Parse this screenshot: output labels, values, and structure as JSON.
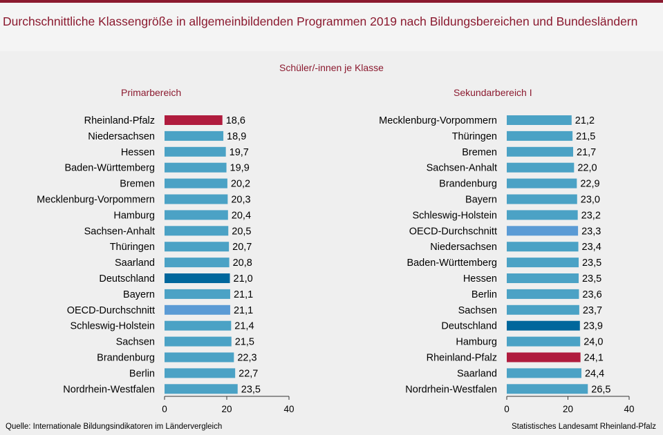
{
  "title": "Durchschnittliche Klassengröße in allgemeinbildenden Programmen 2019 nach Bildungsbereichen und Bundesländern",
  "subtitle": "Schüler/-innen  je Klasse",
  "footer": {
    "source": "Quelle:  Internationale  Bildungsindikatoren  im Ländervergleich",
    "publisher": "Statistisches Landesamt  Rheinland-Pfalz"
  },
  "colors": {
    "default": "#4ba2c5",
    "rheinland_pfalz": "#b01c3e",
    "deutschland": "#00679c",
    "oecd": "#5b9bd5",
    "accent": "#8b1a2f"
  },
  "chart_data": [
    {
      "type": "bar",
      "orientation": "horizontal",
      "title": "Primarbereich",
      "xlim": [
        0,
        40
      ],
      "xticks": [
        0,
        20,
        40
      ],
      "categories": [
        "Rheinland-Pfalz",
        "Niedersachsen",
        "Hessen",
        "Baden-Württemberg",
        "Bremen",
        "Mecklenburg-Vorpommern",
        "Hamburg",
        "Sachsen-Anhalt",
        "Thüringen",
        "Saarland",
        "Deutschland",
        "Bayern",
        "OECD-Durchschnitt",
        "Schleswig-Holstein",
        "Sachsen",
        "Brandenburg",
        "Berlin",
        "Nordrhein-Westfalen"
      ],
      "values": [
        18.6,
        18.9,
        19.7,
        19.9,
        20.2,
        20.3,
        20.4,
        20.5,
        20.7,
        20.8,
        21.0,
        21.1,
        21.1,
        21.4,
        21.5,
        22.3,
        22.7,
        23.5
      ],
      "labels": [
        "18,6",
        "18,9",
        "19,7",
        "19,9",
        "20,2",
        "20,3",
        "20,4",
        "20,5",
        "20,7",
        "20,8",
        "21,0",
        "21,1",
        "21,1",
        "21,4",
        "21,5",
        "22,3",
        "22,7",
        "23,5"
      ]
    },
    {
      "type": "bar",
      "orientation": "horizontal",
      "title": "Sekundarbereich I",
      "xlim": [
        0,
        40
      ],
      "xticks": [
        0,
        20,
        40
      ],
      "categories": [
        "Mecklenburg-Vorpommern",
        "Thüringen",
        "Bremen",
        "Sachsen-Anhalt",
        "Brandenburg",
        "Bayern",
        "Schleswig-Holstein",
        "OECD-Durchschnitt",
        "Niedersachsen",
        "Baden-Württemberg",
        "Hessen",
        "Berlin",
        "Sachsen",
        "Deutschland",
        "Hamburg",
        "Rheinland-Pfalz",
        "Saarland",
        "Nordrhein-Westfalen"
      ],
      "values": [
        21.2,
        21.5,
        21.7,
        22.0,
        22.9,
        23.0,
        23.2,
        23.3,
        23.4,
        23.5,
        23.5,
        23.6,
        23.7,
        23.9,
        24.0,
        24.1,
        24.4,
        26.5
      ],
      "labels": [
        "21,2",
        "21,5",
        "21,7",
        "22,0",
        "22,9",
        "23,0",
        "23,2",
        "23,3",
        "23,4",
        "23,5",
        "23,5",
        "23,6",
        "23,7",
        "23,9",
        "24,0",
        "24,1",
        "24,4",
        "26,5"
      ]
    }
  ]
}
